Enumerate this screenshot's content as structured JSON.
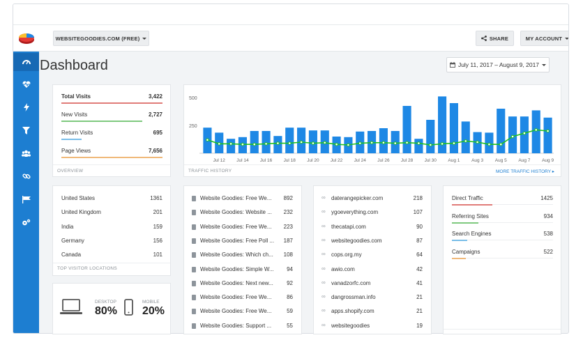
{
  "header": {
    "site_selector": "WEBSITEGOODIES.COM (FREE)",
    "share": "SHARE",
    "account": "MY ACCOUNT"
  },
  "page": {
    "title": "Dashboard",
    "date_range": "July 11, 2017 – August 9, 2017"
  },
  "sidebar": {
    "items": [
      {
        "icon": "dashboard-icon"
      },
      {
        "icon": "heartbeat-icon"
      },
      {
        "icon": "lightning-icon"
      },
      {
        "icon": "filter-icon"
      },
      {
        "icon": "users-icon"
      },
      {
        "icon": "link-icon"
      },
      {
        "icon": "flag-icon"
      },
      {
        "icon": "gears-icon"
      }
    ]
  },
  "overview": {
    "footer": "OVERVIEW",
    "metrics": [
      {
        "label": "Total Visits",
        "value": "3,422",
        "color": "#e07b78",
        "fill": 1.0
      },
      {
        "label": "New Visits",
        "value": "2,727",
        "color": "#7ec97e",
        "fill": 0.8
      },
      {
        "label": "Return Visits",
        "value": "695",
        "color": "#78bde8",
        "fill": 0.2
      },
      {
        "label": "Page Views",
        "value": "7,656",
        "color": "#f0b97a",
        "fill": 1.0
      }
    ]
  },
  "traffic": {
    "footer": "TRAFFIC HISTORY",
    "more_link": "MORE TRAFFIC HISTORY",
    "chart_data": {
      "type": "bar",
      "ylim": [
        0,
        550
      ],
      "yticks": [
        250,
        500
      ],
      "xtick_labels": [
        "Jul 12",
        "Jul 14",
        "Jul 16",
        "Jul 18",
        "Jul 20",
        "Jul 22",
        "Jul 24",
        "Jul 26",
        "Jul 28",
        "Jul 30",
        "Aug 1",
        "Aug 3",
        "Aug 5",
        "Aug 7",
        "Aug 9"
      ],
      "series": [
        {
          "values": [
            230,
            185,
            130,
            145,
            200,
            200,
            155,
            230,
            230,
            205,
            205,
            150,
            145,
            195,
            200,
            225,
            200,
            425,
            130,
            300,
            510,
            450,
            285,
            190,
            185,
            400,
            330,
            330,
            385,
            320
          ],
          "color": "#1e88e5"
        },
        {
          "values": [
            120,
            85,
            85,
            80,
            80,
            85,
            90,
            90,
            100,
            90,
            95,
            80,
            75,
            90,
            95,
            95,
            90,
            95,
            90,
            75,
            85,
            90,
            110,
            100,
            80,
            80,
            150,
            180,
            210,
            200
          ],
          "color": "#20c020"
        }
      ]
    }
  },
  "locations": {
    "footer": "TOP VISITOR LOCATIONS",
    "rows": [
      {
        "name": "United States",
        "value": "1361"
      },
      {
        "name": "United Kingdom",
        "value": "201"
      },
      {
        "name": "India",
        "value": "159"
      },
      {
        "name": "Germany",
        "value": "156"
      },
      {
        "name": "Canada",
        "value": "101"
      }
    ]
  },
  "devices": {
    "desktop_label": "DESKTOP",
    "desktop_value": "80%",
    "mobile_label": "MOBILE",
    "mobile_value": "20%"
  },
  "pages": {
    "rows": [
      {
        "name": "Website Goodies: Free We...",
        "value": "892"
      },
      {
        "name": "Website Goodies: Website ...",
        "value": "232"
      },
      {
        "name": "Website Goodies: Free We...",
        "value": "223"
      },
      {
        "name": "Website Goodies: Free Poll ...",
        "value": "187"
      },
      {
        "name": "Website Goodies: Which ch...",
        "value": "108"
      },
      {
        "name": "Website Goodies: Simple W...",
        "value": "94"
      },
      {
        "name": "Website Goodies: Next new...",
        "value": "92"
      },
      {
        "name": "Website Goodies: Free We...",
        "value": "86"
      },
      {
        "name": "Website Goodies: Free We...",
        "value": "59"
      },
      {
        "name": "Website Goodies: Support ...",
        "value": "55"
      }
    ]
  },
  "referrers": {
    "rows": [
      {
        "name": "daterangepicker.com",
        "value": "218"
      },
      {
        "name": "ygoeverything.com",
        "value": "107"
      },
      {
        "name": "thecatapi.com",
        "value": "90"
      },
      {
        "name": "websitegoodies.com",
        "value": "87"
      },
      {
        "name": "cops.org.my",
        "value": "64"
      },
      {
        "name": "awio.com",
        "value": "42"
      },
      {
        "name": "vanadzorfc.com",
        "value": "41"
      },
      {
        "name": "dangrossman.info",
        "value": "21"
      },
      {
        "name": "apps.shopify.com",
        "value": "21"
      },
      {
        "name": "websitegoodies",
        "value": "19"
      }
    ]
  },
  "sources": {
    "rows": [
      {
        "name": "Direct Traffic",
        "value": "1425",
        "color": "#e07b78",
        "fill": 0.4
      },
      {
        "name": "Referring Sites",
        "value": "934",
        "color": "#7ec97e",
        "fill": 0.26
      },
      {
        "name": "Search Engines",
        "value": "538",
        "color": "#78bde8",
        "fill": 0.15
      },
      {
        "name": "Campaigns",
        "value": "522",
        "color": "#f0b97a",
        "fill": 0.14
      }
    ]
  }
}
